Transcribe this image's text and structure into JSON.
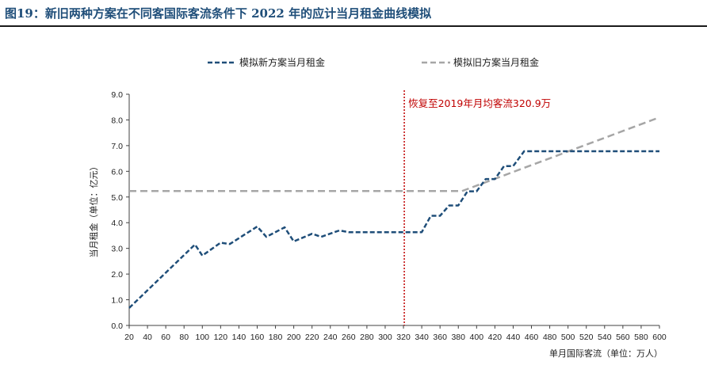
{
  "figure": {
    "title": "图19：新旧两种方案在不同客国际客流条件下 2022 年的应计当月租金曲线模拟"
  },
  "chart_data": {
    "type": "line",
    "xlabel": "单月国际客流（单位：万人）",
    "ylabel": "当月租金（单位：亿元）",
    "xlim": [
      20,
      600
    ],
    "ylim": [
      0,
      9
    ],
    "x_ticks": [
      20,
      40,
      60,
      80,
      100,
      120,
      140,
      160,
      180,
      200,
      220,
      240,
      260,
      280,
      300,
      320,
      340,
      360,
      380,
      400,
      420,
      440,
      460,
      480,
      500,
      520,
      540,
      560,
      580,
      600
    ],
    "y_ticks": [
      "0.0",
      "1.0",
      "2.0",
      "3.0",
      "4.0",
      "5.0",
      "6.0",
      "7.0",
      "8.0",
      "9.0"
    ],
    "legend_position": "top",
    "series": [
      {
        "name": "模拟新方案当月租金",
        "color": "#1f4e79",
        "style": "dashed",
        "points": [
          [
            20,
            0.68
          ],
          [
            92,
            3.15
          ],
          [
            100,
            2.72
          ],
          [
            120,
            3.22
          ],
          [
            130,
            3.17
          ],
          [
            160,
            3.85
          ],
          [
            170,
            3.45
          ],
          [
            190,
            3.82
          ],
          [
            200,
            3.27
          ],
          [
            220,
            3.57
          ],
          [
            230,
            3.45
          ],
          [
            250,
            3.7
          ],
          [
            260,
            3.63
          ],
          [
            340,
            3.63
          ],
          [
            350,
            4.27
          ],
          [
            360,
            4.27
          ],
          [
            370,
            4.67
          ],
          [
            380,
            4.67
          ],
          [
            390,
            5.22
          ],
          [
            400,
            5.22
          ],
          [
            410,
            5.7
          ],
          [
            420,
            5.7
          ],
          [
            430,
            6.2
          ],
          [
            440,
            6.2
          ],
          [
            452,
            6.78
          ],
          [
            600,
            6.78
          ]
        ]
      },
      {
        "name": "模拟旧方案当月租金",
        "color": "#a6a6a6",
        "style": "dashed",
        "points": [
          [
            20,
            5.23
          ],
          [
            384,
            5.23
          ],
          [
            600,
            8.1
          ]
        ]
      }
    ],
    "annotation": {
      "text": "恢复至2019年月均客流320.9万",
      "x": 320.9,
      "color": "#c00000"
    }
  }
}
